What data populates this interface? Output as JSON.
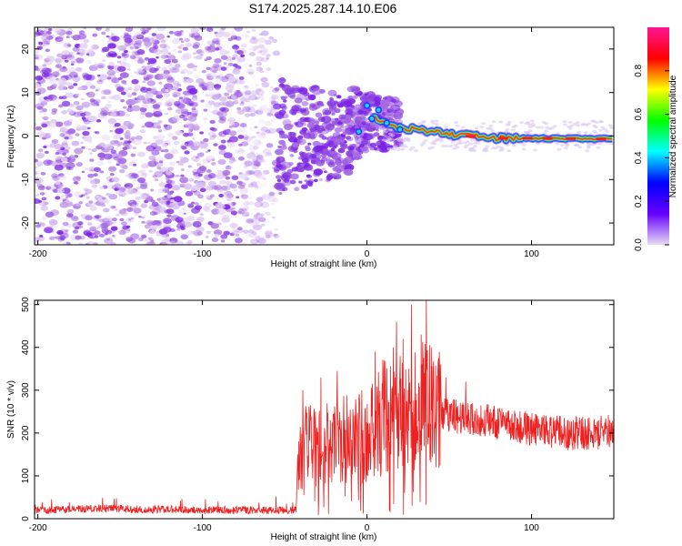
{
  "title": "S174.2025.287.14.10.E06",
  "chart_data": [
    {
      "type": "heatmap",
      "panel": "spectrogram",
      "xlabel": "Height of straight line (km)",
      "ylabel": "Frequency (Hz)",
      "xlim": [
        -202,
        150
      ],
      "ylim": [
        -25,
        25
      ],
      "xticks": [
        -200,
        -100,
        0,
        100
      ],
      "yticks": [
        -20,
        -10,
        0,
        10,
        20
      ],
      "description_points": {
        "noise_region_x": [
          -202,
          -55
        ],
        "cluster_region_x": [
          -55,
          10
        ],
        "narrowband_line": [
          {
            "x": 0,
            "y": 5
          },
          {
            "x": 10,
            "y": 3
          },
          {
            "x": 20,
            "y": 2
          },
          {
            "x": 30,
            "y": 1.5
          },
          {
            "x": 40,
            "y": 1
          },
          {
            "x": 60,
            "y": 0
          },
          {
            "x": 80,
            "y": -0.5
          },
          {
            "x": 100,
            "y": -0.5
          },
          {
            "x": 150,
            "y": -0.7
          }
        ]
      },
      "colorbar": {
        "label": "Normalized spectral amplitude",
        "range": [
          0,
          1
        ],
        "ticks": [
          "0.0",
          "0.2",
          "0.4",
          "0.6",
          "0.8"
        ],
        "colors": [
          "#e8dcf3",
          "#6600ff",
          "#0000ff",
          "#00ffff",
          "#00ff00",
          "#ffff00",
          "#ff0000",
          "#ff1493"
        ]
      }
    },
    {
      "type": "line",
      "panel": "snr",
      "xlabel": "Height of straight line (km)",
      "ylabel": "SNR (10 * v/v)",
      "xlim": [
        -202,
        150
      ],
      "ylim": [
        0,
        510
      ],
      "xticks": [
        -200,
        -100,
        0,
        100
      ],
      "yticks": [
        0,
        100,
        200,
        300,
        400,
        500
      ],
      "color": "#ee2020",
      "series": [
        {
          "name": "SNR",
          "x": [
            -202,
            -180,
            -160,
            -140,
            -120,
            -100,
            -80,
            -60,
            -43,
            -42,
            -35,
            -30,
            -20,
            -10,
            0,
            5,
            10,
            18,
            25,
            30,
            35,
            40,
            50,
            60,
            70,
            80,
            90,
            100,
            110,
            120,
            130,
            140,
            150
          ],
          "y": [
            20,
            22,
            25,
            22,
            22,
            20,
            20,
            20,
            20,
            150,
            170,
            160,
            175,
            185,
            190,
            200,
            235,
            240,
            250,
            250,
            260,
            255,
            240,
            235,
            230,
            225,
            215,
            210,
            205,
            200,
            200,
            200,
            205
          ],
          "peaks": [
            {
              "x": -39,
              "y": 300
            },
            {
              "x": -28,
              "y": 330
            },
            {
              "x": -18,
              "y": 345
            },
            {
              "x": 5,
              "y": 390
            },
            {
              "x": 16,
              "y": 400
            },
            {
              "x": 18,
              "y": 460
            },
            {
              "x": 22,
              "y": 420
            },
            {
              "x": 27,
              "y": 500
            },
            {
              "x": 33,
              "y": 430
            },
            {
              "x": 36,
              "y": 510
            },
            {
              "x": 48,
              "y": 330
            },
            {
              "x": 60,
              "y": 320
            }
          ]
        }
      ]
    }
  ]
}
